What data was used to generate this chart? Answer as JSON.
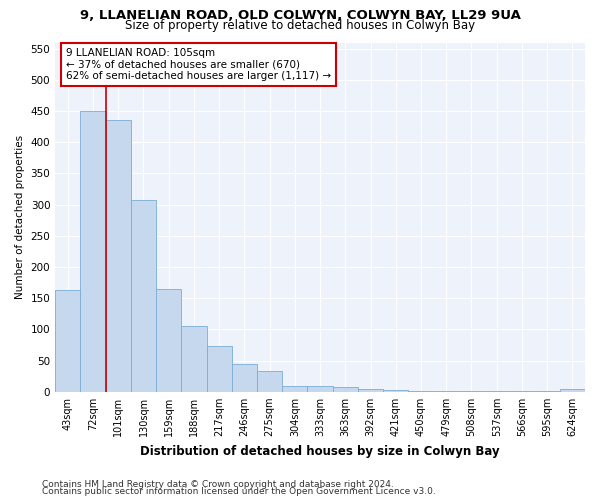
{
  "title1": "9, LLANELIAN ROAD, OLD COLWYN, COLWYN BAY, LL29 9UA",
  "title2": "Size of property relative to detached houses in Colwyn Bay",
  "xlabel": "Distribution of detached houses by size in Colwyn Bay",
  "ylabel": "Number of detached properties",
  "categories": [
    "43sqm",
    "72sqm",
    "101sqm",
    "130sqm",
    "159sqm",
    "188sqm",
    "217sqm",
    "246sqm",
    "275sqm",
    "304sqm",
    "333sqm",
    "363sqm",
    "392sqm",
    "421sqm",
    "450sqm",
    "479sqm",
    "508sqm",
    "537sqm",
    "566sqm",
    "595sqm",
    "624sqm"
  ],
  "values": [
    163,
    450,
    435,
    307,
    165,
    106,
    73,
    44,
    33,
    10,
    10,
    8,
    4,
    3,
    2,
    2,
    2,
    2,
    2,
    2,
    5
  ],
  "bar_color": "#c5d8ee",
  "bar_edge_color": "#7aadd4",
  "red_line_index": 2,
  "annotation_line1": "9 LLANELIAN ROAD: 105sqm",
  "annotation_line2": "← 37% of detached houses are smaller (670)",
  "annotation_line3": "62% of semi-detached houses are larger (1,117) →",
  "annotation_box_facecolor": "#ffffff",
  "annotation_box_edgecolor": "#cc0000",
  "ylim": [
    0,
    560
  ],
  "yticks": [
    0,
    50,
    100,
    150,
    200,
    250,
    300,
    350,
    400,
    450,
    500,
    550
  ],
  "footer1": "Contains HM Land Registry data © Crown copyright and database right 2024.",
  "footer2": "Contains public sector information licensed under the Open Government Licence v3.0.",
  "bg_color": "#ffffff",
  "plot_bg_color": "#eef2fb",
  "grid_color": "#ffffff",
  "title1_fontsize": 9.5,
  "title2_fontsize": 8.5,
  "xlabel_fontsize": 8.5,
  "ylabel_fontsize": 7.5,
  "xtick_fontsize": 7,
  "ytick_fontsize": 7.5,
  "footer_fontsize": 6.5
}
